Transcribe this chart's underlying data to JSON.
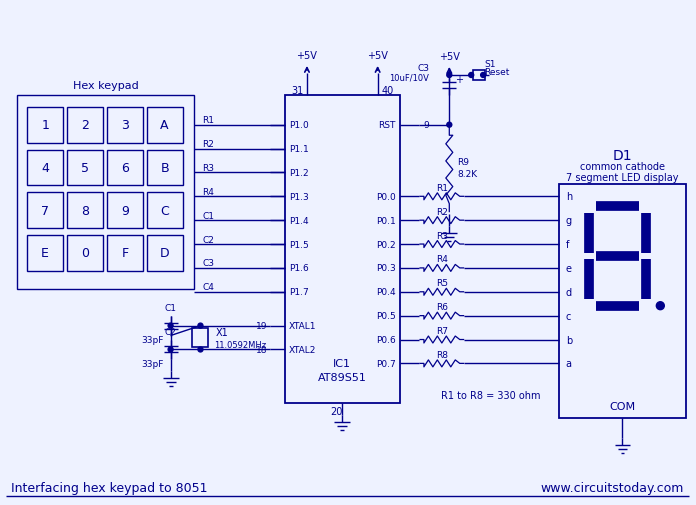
{
  "bg_color": "#eef2ff",
  "line_color": "#00008B",
  "text_color": "#00008B",
  "title": "Interfacing hex keypad to 8051",
  "website": "www.circuitstoday.com",
  "figsize": [
    6.96,
    5.06
  ],
  "dpi": 100,
  "keys": [
    [
      "1",
      "2",
      "3",
      "A"
    ],
    [
      "4",
      "5",
      "6",
      "B"
    ],
    [
      "7",
      "8",
      "9",
      "C"
    ],
    [
      "E",
      "0",
      "F",
      "D"
    ]
  ],
  "p1_labels": [
    "P1.0",
    "P1.1",
    "P1.2",
    "P1.3",
    "P1.4",
    "P1.5",
    "P1.6",
    "P1.7"
  ],
  "p0_labels": [
    "P0.0",
    "P0.1",
    "P0.2",
    "P0.3",
    "P0.4",
    "P0.5",
    "P0.6",
    "P0.7"
  ],
  "seg_labels": [
    "h",
    "g",
    "f",
    "e",
    "d",
    "c",
    "b",
    "a"
  ],
  "res_labels": [
    "R1",
    "R2",
    "R3",
    "R4",
    "R5",
    "R6",
    "R7",
    "R8"
  ],
  "pad_labels": [
    "R1",
    "R2",
    "R3",
    "R4",
    "C1",
    "C2",
    "C3",
    "C4"
  ]
}
